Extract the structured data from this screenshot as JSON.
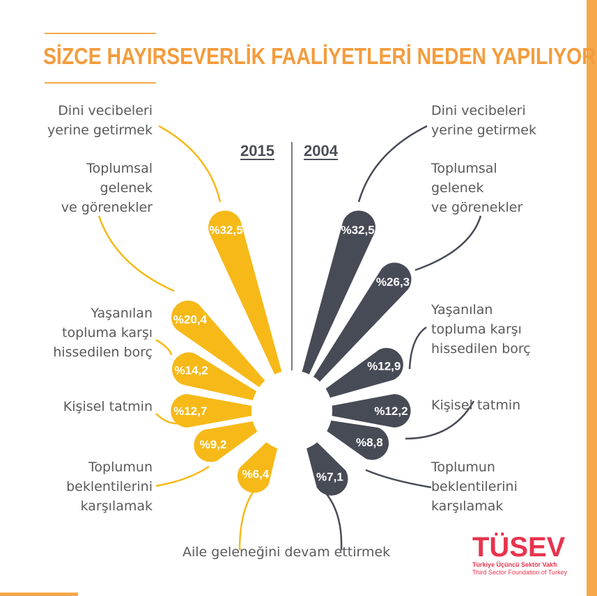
{
  "title": "SİZCE HAYIRSEVERLİK FAALİYETLERİ NEDEN YAPILIYOR?",
  "colors": {
    "y2015": "#f6b918",
    "y2004": "#474b56",
    "accent": "#f39c3d",
    "logo": "#e8344e"
  },
  "logo": {
    "word": "TÜSEV",
    "line1": "Türkiye Üçüncü Sektör Vakfı",
    "line2": "Third Sector Foundation of Turkey"
  },
  "chart_data": {
    "type": "bar",
    "title": "SİZCE HAYIRSEVERLİK FAALİYETLERİ NEDEN YAPILIYOR?",
    "categories": [
      "Dini vecibeleri yerine getirmek",
      "Toplumsal gelenek ve görenekler",
      "Yaşanılan topluma karşı hissedilen borç",
      "Kişisel tatmin",
      "Toplumun beklentilerini karşılamak",
      "Aile geleneğini devam ettirmek"
    ],
    "series": [
      {
        "name": "2015",
        "values": [
          32.5,
          20.4,
          14.2,
          12.7,
          9.2,
          6.4
        ],
        "labels": [
          "%32,5",
          "%20,4",
          "%14,2",
          "%12,7",
          "%9,2",
          "%6,4"
        ]
      },
      {
        "name": "2004",
        "values": [
          32.5,
          26.3,
          12.9,
          12.2,
          8.8,
          7.1
        ],
        "labels": [
          "%32,5",
          "%26,3",
          "%12,9",
          "%12,2",
          "%8,8",
          "%7,1"
        ]
      }
    ],
    "category_labels": {
      "left": [
        "Dini vecibeleri\nyerine getirmek",
        "Toplumsal\ngelenek\nve görenekler",
        "Yaşanılan\ntopluma karşı\nhissedilen borç",
        "Kişisel tatmin",
        "Toplumun\nbeklentilerini\nkarşılamak"
      ],
      "right": [
        "Dini vecibeleri\nyerine getirmek",
        "Toplumsal\ngelenek\nve görenekler",
        "Yaşanılan\ntopluma karşı\nhissedilen borç",
        "Kişisel tatmin",
        "Toplumun\nbeklentilerini\nkarşılamak"
      ],
      "bottom": "Aile geleneğini devam ettirmek"
    },
    "legend": "top-center"
  }
}
